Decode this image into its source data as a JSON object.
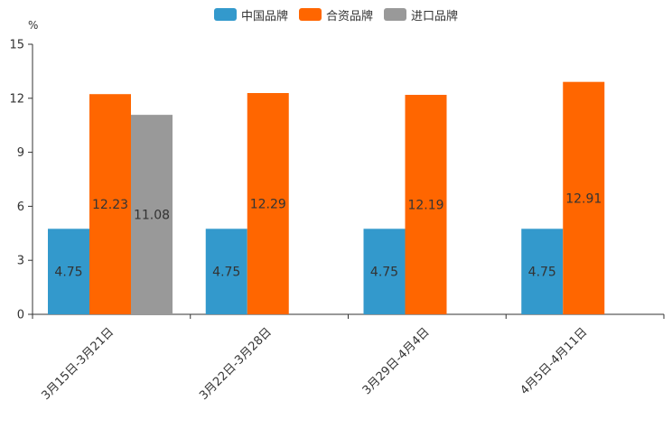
{
  "chart_data": {
    "type": "bar",
    "unit": "%",
    "categories": [
      "3月15日-3月21日",
      "3月22日-3月28日",
      "3月29日-4月4日",
      "4月5日-4月11日"
    ],
    "series": [
      {
        "name": "中国品牌",
        "color": "#3399cc",
        "values": [
          4.75,
          4.75,
          4.75,
          4.75
        ],
        "labels": [
          "4.75",
          "4.75",
          "4.75",
          "4.75"
        ]
      },
      {
        "name": "合资品牌",
        "color": "#ff6600",
        "values": [
          12.23,
          12.29,
          12.19,
          12.91
        ],
        "labels": [
          "12.23",
          "12.29",
          "12.19",
          "12.91"
        ]
      },
      {
        "name": "进口品牌",
        "color": "#999999",
        "values": [
          11.08,
          null,
          null,
          null
        ],
        "labels": [
          "11.08",
          "",
          "",
          ""
        ]
      }
    ],
    "y_ticks": [
      "0",
      "3",
      "6",
      "9",
      "12",
      "15"
    ],
    "ylim": [
      0,
      15
    ]
  }
}
